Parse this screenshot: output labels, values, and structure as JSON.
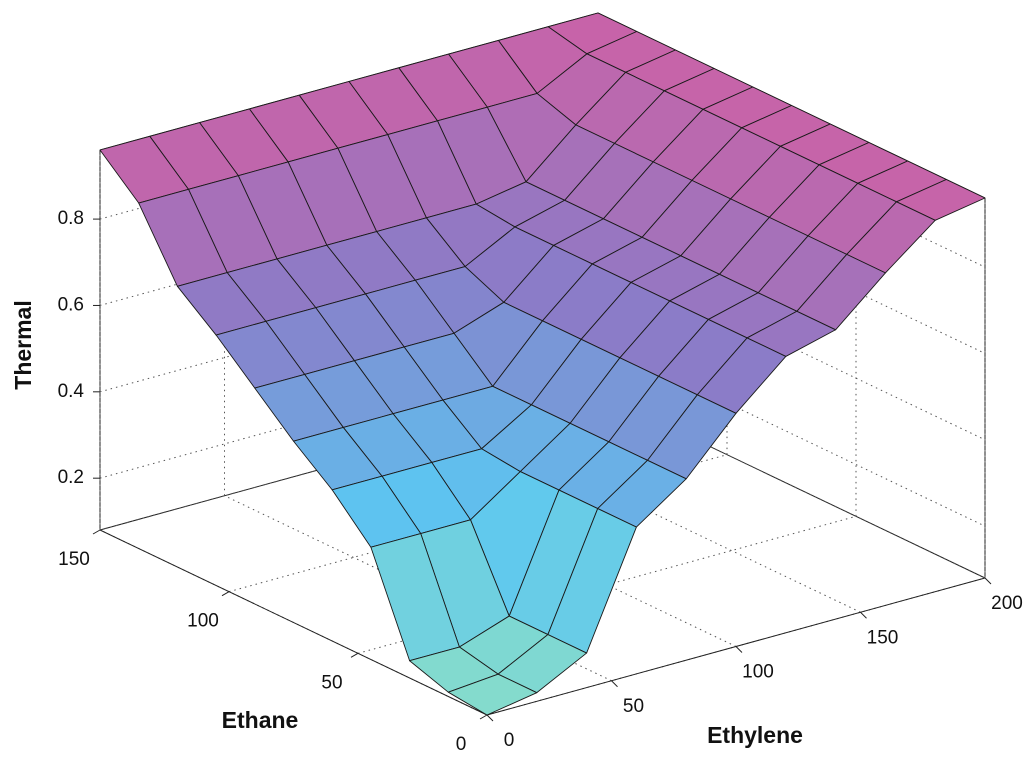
{
  "chart_data": {
    "type": "surface",
    "xlabel": "Ethylene",
    "ylabel": "Ethane",
    "zlabel": "Thermal",
    "x": [
      0,
      20,
      40,
      60,
      80,
      100,
      120,
      140,
      160,
      180,
      200
    ],
    "y": [
      0,
      15,
      30,
      45,
      60,
      75,
      90,
      105,
      120,
      135,
      150
    ],
    "z": [
      [
        0.08,
        0.1,
        0.16,
        0.42,
        0.5,
        0.62,
        0.72,
        0.75,
        0.85,
        0.94,
        0.96
      ],
      [
        0.09,
        0.1,
        0.16,
        0.42,
        0.5,
        0.62,
        0.72,
        0.75,
        0.85,
        0.94,
        0.96
      ],
      [
        0.12,
        0.12,
        0.16,
        0.42,
        0.5,
        0.62,
        0.72,
        0.75,
        0.85,
        0.94,
        0.96
      ],
      [
        0.34,
        0.34,
        0.34,
        0.42,
        0.5,
        0.62,
        0.72,
        0.75,
        0.85,
        0.94,
        0.96
      ],
      [
        0.43,
        0.43,
        0.43,
        0.43,
        0.5,
        0.62,
        0.72,
        0.75,
        0.85,
        0.94,
        0.96
      ],
      [
        0.5,
        0.5,
        0.5,
        0.5,
        0.5,
        0.62,
        0.72,
        0.75,
        0.85,
        0.94,
        0.96
      ],
      [
        0.58,
        0.58,
        0.58,
        0.58,
        0.58,
        0.62,
        0.72,
        0.75,
        0.85,
        0.94,
        0.96
      ],
      [
        0.66,
        0.66,
        0.66,
        0.66,
        0.66,
        0.66,
        0.72,
        0.75,
        0.85,
        0.94,
        0.96
      ],
      [
        0.73,
        0.73,
        0.73,
        0.73,
        0.73,
        0.73,
        0.73,
        0.75,
        0.85,
        0.94,
        0.96
      ],
      [
        0.88,
        0.88,
        0.88,
        0.88,
        0.88,
        0.88,
        0.88,
        0.88,
        0.88,
        0.94,
        0.96
      ],
      [
        0.96,
        0.96,
        0.96,
        0.96,
        0.96,
        0.96,
        0.96,
        0.96,
        0.96,
        0.96,
        0.96
      ]
    ],
    "xlim": [
      0,
      200
    ],
    "ylim": [
      0,
      150
    ],
    "zlim": [
      0.08,
      0.96
    ],
    "xticks": [
      0,
      50,
      100,
      150,
      200
    ],
    "yticks": [
      0,
      50,
      100,
      150
    ],
    "zticks": [
      0.2,
      0.4,
      0.6,
      0.8
    ],
    "grid": true,
    "colormap": [
      "#86dccb",
      "#5cc6f2",
      "#8a7cc8",
      "#c863a8"
    ]
  }
}
